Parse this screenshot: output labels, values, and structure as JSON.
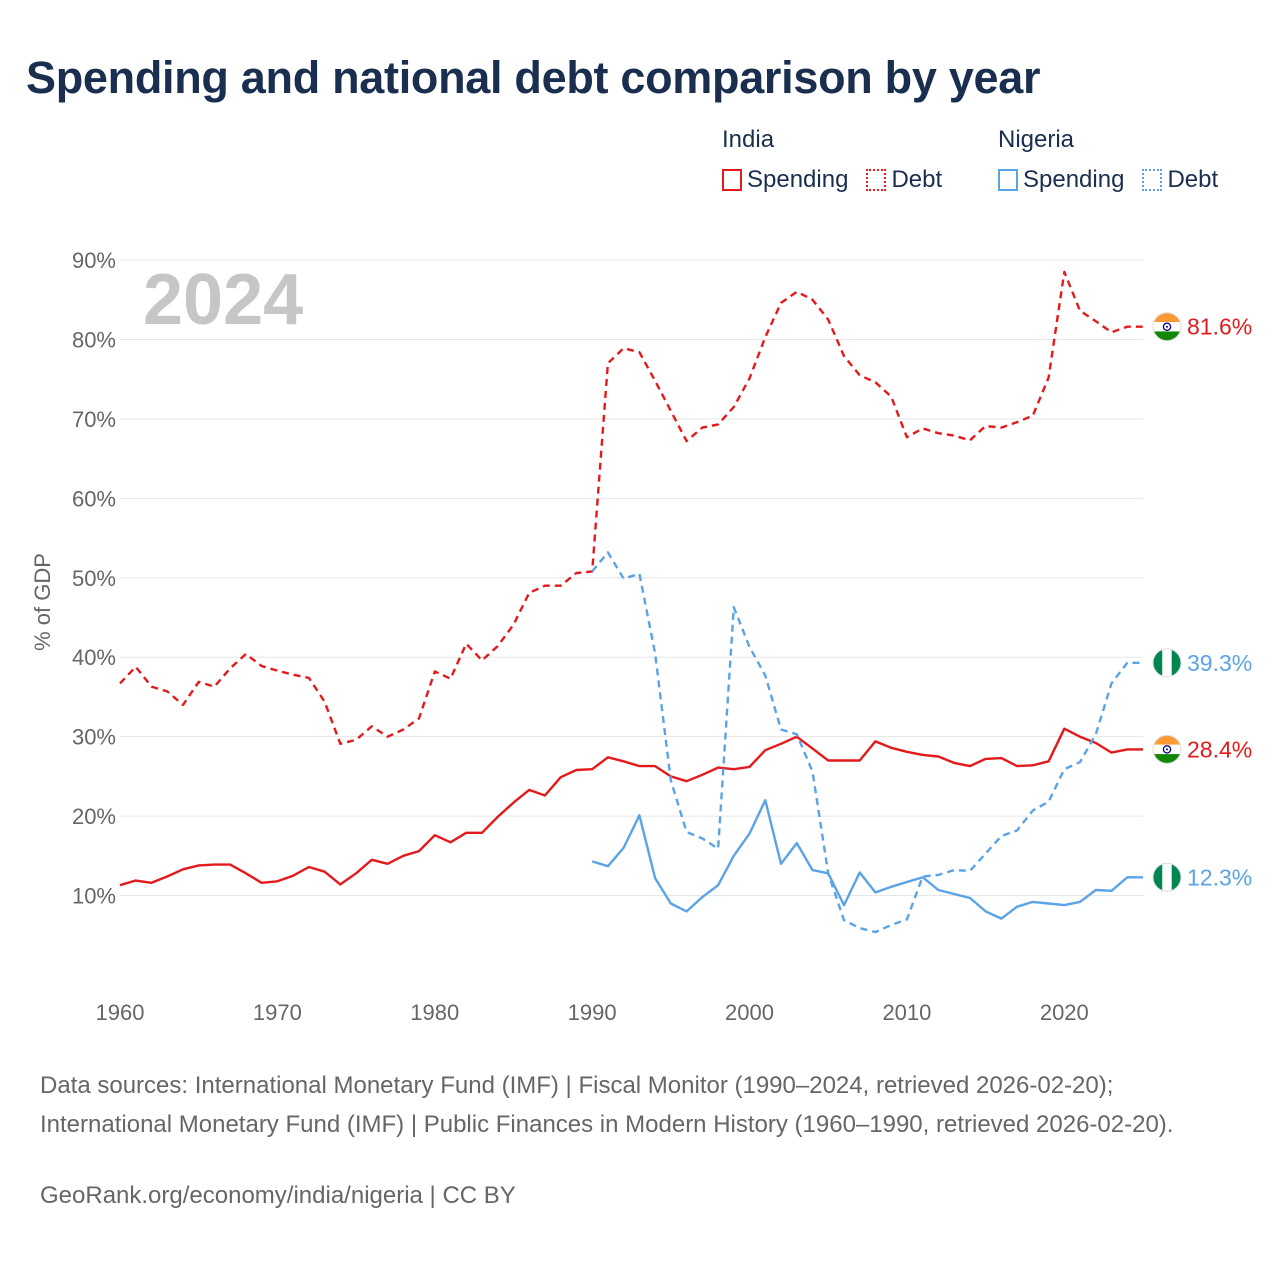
{
  "title": "Spending and national debt comparison by year",
  "legend": {
    "groups": [
      {
        "name": "India",
        "items": [
          {
            "label": "Spending",
            "style": "solid",
            "color": "#e31a1c"
          },
          {
            "label": "Debt",
            "style": "dotted",
            "color": "#e31a1c"
          }
        ]
      },
      {
        "name": "Nigeria",
        "items": [
          {
            "label": "Spending",
            "style": "solid",
            "color": "#5aa3e6"
          },
          {
            "label": "Debt",
            "style": "dotted",
            "color": "#5aa3e6"
          }
        ]
      }
    ]
  },
  "source_text": "Data sources: International Monetary Fund (IMF) | Fiscal Monitor (1990–2024, retrieved 2026-02-20); International Monetary Fund (IMF) | Public Finances in Modern History (1960–1990, retrieved 2026-02-20).",
  "credit_text": "GeoRank.org/economy/india/nigeria | CC BY",
  "chart_data": {
    "type": "line",
    "title": "Spending and national debt comparison by year",
    "ylabel": "% of GDP",
    "xlabel": "",
    "year_label": "2024",
    "xlim": [
      1960,
      2025
    ],
    "ylim": [
      0,
      90
    ],
    "x_ticks": [
      1960,
      1970,
      1980,
      1990,
      2000,
      2010,
      2020
    ],
    "x_tick_labels": [
      "1960",
      "1970",
      "1980",
      "1990",
      "2000",
      "2010",
      "2020"
    ],
    "y_ticks": [
      10,
      20,
      30,
      40,
      50,
      60,
      70,
      80,
      90
    ],
    "y_tick_labels": [
      "10%",
      "20%",
      "30%",
      "40%",
      "50%",
      "60%",
      "70%",
      "80%",
      "90%"
    ],
    "grid": true,
    "series": [
      {
        "name": "India Debt",
        "country": "India",
        "measure": "Debt",
        "color": "#e31a1c",
        "dashed": true,
        "end_label": "81.6%",
        "flag": "india",
        "x": [
          1960,
          1961,
          1962,
          1963,
          1964,
          1965,
          1966,
          1967,
          1968,
          1969,
          1970,
          1971,
          1972,
          1973,
          1974,
          1975,
          1976,
          1977,
          1978,
          1979,
          1980,
          1981,
          1982,
          1983,
          1984,
          1985,
          1986,
          1987,
          1988,
          1989,
          1990,
          1991,
          1992,
          1993,
          1994,
          1995,
          1996,
          1997,
          1998,
          1999,
          2000,
          2001,
          2002,
          2003,
          2004,
          2005,
          2006,
          2007,
          2008,
          2009,
          2010,
          2011,
          2012,
          2013,
          2014,
          2015,
          2016,
          2017,
          2018,
          2019,
          2020,
          2021,
          2022,
          2023,
          2024,
          2025
        ],
        "values": [
          36.7,
          38.8,
          36.3,
          35.7,
          34.0,
          36.9,
          36.3,
          38.6,
          40.4,
          38.9,
          38.3,
          37.8,
          37.4,
          34.4,
          29.1,
          29.6,
          31.3,
          30.0,
          30.9,
          32.3,
          38.2,
          37.3,
          41.7,
          39.6,
          41.4,
          44.1,
          48.1,
          49.0,
          49.0,
          50.6,
          50.8,
          77.0,
          78.9,
          78.4,
          74.8,
          71.0,
          67.2,
          68.9,
          69.3,
          71.5,
          75.1,
          80.3,
          84.6,
          86.0,
          85.0,
          82.5,
          77.9,
          75.5,
          74.6,
          72.8,
          67.7,
          68.8,
          68.2,
          67.9,
          67.3,
          69.1,
          68.9,
          69.6,
          70.4,
          75.2,
          88.5,
          83.6,
          82.3,
          80.9,
          81.6,
          81.6
        ]
      },
      {
        "name": "India Spending",
        "country": "India",
        "measure": "Spending",
        "color": "#e31a1c",
        "dashed": false,
        "end_label": "28.4%",
        "flag": "india",
        "x": [
          1960,
          1961,
          1962,
          1963,
          1964,
          1965,
          1966,
          1967,
          1968,
          1969,
          1970,
          1971,
          1972,
          1973,
          1974,
          1975,
          1976,
          1977,
          1978,
          1979,
          1980,
          1981,
          1982,
          1983,
          1984,
          1985,
          1986,
          1987,
          1988,
          1989,
          1990,
          1991,
          1992,
          1993,
          1994,
          1995,
          1996,
          1997,
          1998,
          1999,
          2000,
          2001,
          2002,
          2003,
          2004,
          2005,
          2006,
          2007,
          2008,
          2009,
          2010,
          2011,
          2012,
          2013,
          2014,
          2015,
          2016,
          2017,
          2018,
          2019,
          2020,
          2021,
          2022,
          2023,
          2024,
          2025
        ],
        "values": [
          11.3,
          11.9,
          11.6,
          12.4,
          13.3,
          13.8,
          13.9,
          13.9,
          12.8,
          11.6,
          11.8,
          12.5,
          13.6,
          13.0,
          11.4,
          12.8,
          14.5,
          14.0,
          15.0,
          15.6,
          17.6,
          16.7,
          17.9,
          17.9,
          19.9,
          21.7,
          23.3,
          22.6,
          24.9,
          25.8,
          25.9,
          27.4,
          26.9,
          26.3,
          26.3,
          25.0,
          24.4,
          25.2,
          26.1,
          25.9,
          26.2,
          28.3,
          29.1,
          30.0,
          28.5,
          27.0,
          27.0,
          27.0,
          29.4,
          28.6,
          28.1,
          27.7,
          27.5,
          26.7,
          26.3,
          27.2,
          27.3,
          26.3,
          26.4,
          26.9,
          31.0,
          30.0,
          29.2,
          28.0,
          28.4,
          28.4
        ]
      },
      {
        "name": "Nigeria Debt",
        "country": "Nigeria",
        "measure": "Debt",
        "color": "#5aa3e6",
        "dashed": true,
        "end_label": "39.3%",
        "flag": "nigeria",
        "x": [
          1990,
          1991,
          1992,
          1993,
          1994,
          1995,
          1996,
          1997,
          1998,
          1999,
          2000,
          2001,
          2002,
          2003,
          2004,
          2005,
          2006,
          2007,
          2008,
          2009,
          2010,
          2011,
          2012,
          2013,
          2014,
          2015,
          2016,
          2017,
          2018,
          2019,
          2020,
          2021,
          2022,
          2023,
          2024,
          2025
        ],
        "values": [
          50.8,
          53.2,
          49.9,
          50.5,
          40.5,
          24.5,
          18.0,
          17.2,
          15.9,
          46.3,
          41.3,
          37.7,
          30.9,
          30.3,
          25.6,
          12.8,
          6.9,
          5.9,
          5.4,
          6.3,
          7.0,
          12.4,
          12.6,
          13.2,
          13.1,
          15.3,
          17.5,
          18.2,
          20.7,
          21.8,
          25.9,
          26.8,
          30.3,
          36.7,
          39.3,
          39.3
        ]
      },
      {
        "name": "Nigeria Spending",
        "country": "Nigeria",
        "measure": "Spending",
        "color": "#5aa3e6",
        "dashed": false,
        "end_label": "12.3%",
        "flag": "nigeria",
        "x": [
          1990,
          1991,
          1992,
          1993,
          1994,
          1995,
          1996,
          1997,
          1998,
          1999,
          2000,
          2001,
          2002,
          2003,
          2004,
          2005,
          2006,
          2007,
          2008,
          2009,
          2010,
          2011,
          2012,
          2013,
          2014,
          2015,
          2016,
          2017,
          2018,
          2019,
          2020,
          2021,
          2022,
          2023,
          2024,
          2025
        ],
        "values": [
          14.3,
          13.7,
          16.0,
          20.1,
          12.2,
          9.0,
          8.0,
          9.8,
          11.3,
          15.0,
          17.8,
          22.0,
          14.0,
          16.6,
          13.2,
          12.8,
          8.8,
          12.9,
          10.4,
          11.1,
          11.7,
          12.3,
          10.7,
          10.2,
          9.7,
          8.0,
          7.1,
          8.6,
          9.2,
          9.0,
          8.8,
          9.2,
          10.7,
          10.6,
          12.3,
          12.3
        ]
      }
    ]
  }
}
